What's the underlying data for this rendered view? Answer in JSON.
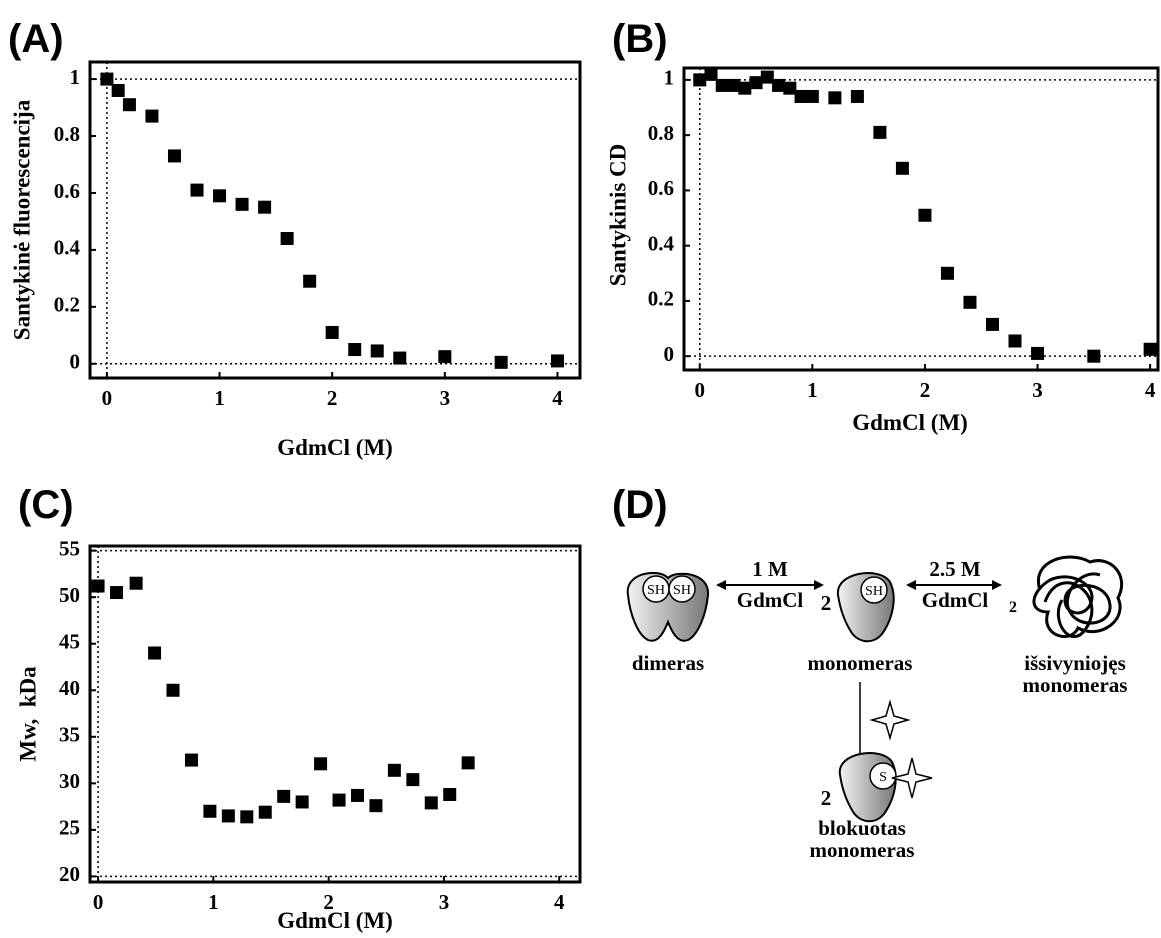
{
  "chart_data": [
    {
      "type": "scatter",
      "panel": "(A)",
      "xlabel": "GdmCl (M)",
      "ylabel": "Santykinė fluorescencija",
      "color": "#000000",
      "x": [
        0,
        0.1,
        0.2,
        0.4,
        0.6,
        0.8,
        1.0,
        1.2,
        1.4,
        1.6,
        1.8,
        2.0,
        2.2,
        2.4,
        2.6,
        3.0,
        3.5,
        4.0
      ],
      "values": [
        1.0,
        0.96,
        0.91,
        0.87,
        0.73,
        0.61,
        0.59,
        0.56,
        0.55,
        0.44,
        0.29,
        0.11,
        0.05,
        0.045,
        0.02,
        0.025,
        0.005,
        0.01
      ],
      "xlim": [
        -0.15,
        4.2
      ],
      "ylim": [
        -0.05,
        1.06
      ],
      "xticks": [
        0,
        1,
        2,
        3,
        4
      ],
      "yticks": [
        0,
        0.2,
        0.4,
        0.6,
        0.8,
        1
      ],
      "hlines": [
        0,
        1
      ],
      "vlines": [
        0
      ]
    },
    {
      "type": "scatter",
      "panel": "(B)",
      "xlabel": "GdmCl (M)",
      "ylabel": "Santykinis CD",
      "color": "#000000",
      "x": [
        0,
        0.1,
        0.2,
        0.3,
        0.4,
        0.5,
        0.6,
        0.7,
        0.8,
        0.9,
        1.0,
        1.2,
        1.4,
        1.6,
        1.8,
        2.0,
        2.2,
        2.4,
        2.6,
        2.8,
        3.0,
        3.5,
        4.0
      ],
      "values": [
        1.0,
        1.02,
        0.98,
        0.98,
        0.97,
        0.99,
        1.01,
        0.98,
        0.97,
        0.94,
        0.94,
        0.935,
        0.94,
        0.81,
        0.68,
        0.51,
        0.3,
        0.195,
        0.115,
        0.055,
        0.01,
        0.0,
        0.025
      ],
      "xlim": [
        -0.14,
        4.07
      ],
      "ylim": [
        -0.05,
        1.043
      ],
      "xticks": [
        0,
        1,
        2,
        3,
        4
      ],
      "yticks": [
        0,
        0.2,
        0.4,
        0.6,
        0.8,
        1
      ],
      "hlines": [
        0,
        1
      ],
      "vlines": [
        0
      ]
    },
    {
      "type": "scatter",
      "panel": "(C)",
      "xlabel": "GdmCl (M)",
      "ylabel": "Mw,  kDa",
      "color": "#000000",
      "x": [
        0,
        0.16,
        0.33,
        0.49,
        0.65,
        0.81,
        0.97,
        1.13,
        1.29,
        1.45,
        1.61,
        1.77,
        1.93,
        2.09,
        2.25,
        2.41,
        2.57,
        2.73,
        2.89,
        3.05,
        3.21
      ],
      "values": [
        51.2,
        50.5,
        51.5,
        44,
        40,
        32.5,
        27,
        26.5,
        26.4,
        26.9,
        28.6,
        28,
        32.1,
        28.2,
        28.7,
        27.6,
        31.4,
        30.4,
        27.9,
        28.8,
        32.2
      ],
      "xlim": [
        -0.07,
        4.18
      ],
      "ylim": [
        19.4,
        55.5
      ],
      "xticks": [
        0,
        1,
        2,
        3,
        4
      ],
      "yticks": [
        20,
        25,
        30,
        35,
        40,
        45,
        50,
        55
      ],
      "hlines": [
        20,
        55
      ],
      "vlines": [
        0
      ]
    }
  ],
  "diagram": {
    "label": "(D)",
    "dimer_sh": [
      "SH",
      "SH"
    ],
    "dimer": "dimeras",
    "arrow1": {
      "top": "1 M",
      "bottom": "GdmCl"
    },
    "monomer_count": "2",
    "monomer_sh": "SH",
    "monomer": "monomeras",
    "arrow2": {
      "top": "2.5 M",
      "bottom": "GdmCl"
    },
    "unfolded_count": "2",
    "unfolded": [
      "išsivyniojęs",
      "monomeras"
    ],
    "blocked_count": "2",
    "blocked_s": "S",
    "blocked": [
      "blokuotas",
      "monomeras"
    ]
  }
}
